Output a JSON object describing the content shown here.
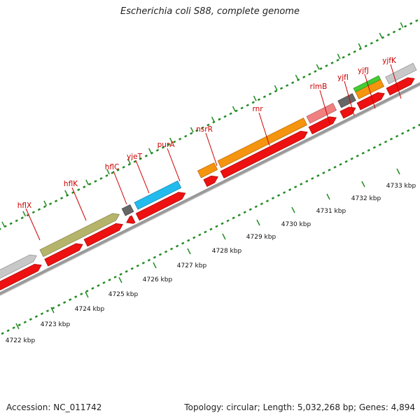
{
  "title": "Escherichia coli S88, complete genome",
  "footer": {
    "accession": "Accession: NC_011742",
    "summary": "Topology: circular; Length: 5,032,268 bp; Genes: 4,894"
  },
  "genes": [
    {
      "name": "hflX"
    },
    {
      "name": "hflK"
    },
    {
      "name": "hflC"
    },
    {
      "name": "yjeT"
    },
    {
      "name": "purA"
    },
    {
      "name": "nsrR"
    },
    {
      "name": "rnr"
    },
    {
      "name": "rlmB"
    },
    {
      "name": "yjfI"
    },
    {
      "name": "yjfJ"
    },
    {
      "name": "yjfK"
    }
  ],
  "kbp_ticks": [
    "4722 kbp",
    "4723 kbp",
    "4724 kbp",
    "4725 kbp",
    "4726 kbp",
    "4727 kbp",
    "4728 kbp",
    "4729 kbp",
    "4730 kbp",
    "4731 kbp",
    "4732 kbp",
    "4733 kbp"
  ],
  "colors": {
    "gene_label": "#cc0000",
    "cds_red": "#ee1111",
    "backbone": "#999999",
    "ruler_dots": "#228b22",
    "hflK_hflC": "#b5b46a",
    "purA": "#22bbee",
    "rnr": "#f5940e",
    "rlmB": "#f08080",
    "yjfJ_green": "#44cc33",
    "gray_feature": "#c8c8c8",
    "dark_gray_feature": "#666666"
  }
}
